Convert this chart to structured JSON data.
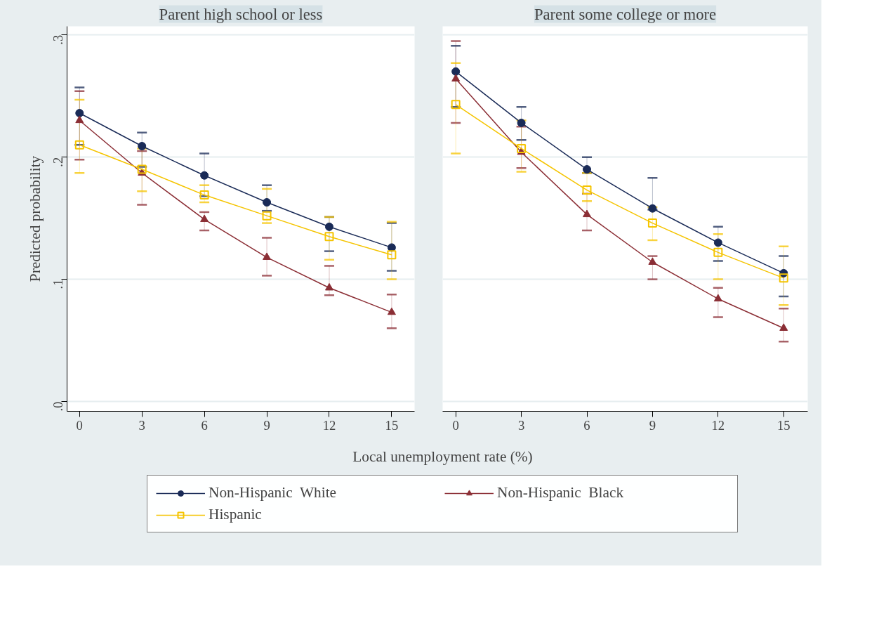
{
  "chart_data": [
    {
      "type": "line",
      "title": "Parent high school or less",
      "xlabel": "Local unemployment rate (%)",
      "ylabel": "Predicted probability",
      "x": [
        0,
        3,
        6,
        9,
        12,
        15
      ],
      "xlim": [
        -0.6,
        16.1
      ],
      "xticks": [
        0,
        3,
        6,
        9,
        12,
        15
      ],
      "ylim": [
        -0.008,
        0.307
      ],
      "yticks": [
        {
          "value": 0,
          "label": ".0"
        },
        {
          "value": 0.1,
          "label": ".1"
        },
        {
          "value": 0.2,
          "label": ".2"
        },
        {
          "value": 0.3,
          "label": ".3"
        }
      ],
      "grid": "y",
      "legend": "bottom",
      "series": [
        {
          "name": "Non-Hispanic  White",
          "color": "#1a2b57",
          "marker": "circle",
          "values": [
            0.236,
            0.209,
            0.185,
            0.163,
            0.143,
            0.126
          ],
          "errors": [
            [
              0.21,
              0.257
            ],
            [
              0.192,
              0.22
            ],
            [
              0.168,
              0.203
            ],
            [
              0.156,
              0.177
            ],
            [
              0.123,
              0.151
            ],
            [
              0.107,
              0.146
            ]
          ]
        },
        {
          "name": "Non-Hispanic  Black",
          "color": "#8b2e35",
          "marker": "triangle",
          "values": [
            0.23,
            0.187,
            0.149,
            0.118,
            0.093,
            0.073
          ],
          "errors": [
            [
              0.198,
              0.254
            ],
            [
              0.161,
              0.205
            ],
            [
              0.14,
              0.155
            ],
            [
              0.103,
              0.134
            ],
            [
              0.087,
              0.111
            ],
            [
              0.06,
              0.0875
            ]
          ]
        },
        {
          "name": "Hispanic",
          "color": "#f5c400",
          "marker": "square",
          "values": [
            0.21,
            0.19,
            0.169,
            0.152,
            0.135,
            0.12
          ],
          "errors": [
            [
              0.187,
              0.247
            ],
            [
              0.172,
              0.207
            ],
            [
              0.163,
              0.177
            ],
            [
              0.146,
              0.174
            ],
            [
              0.116,
              0.151
            ],
            [
              0.1,
              0.147
            ]
          ]
        }
      ]
    },
    {
      "type": "line",
      "title": "Parent some college or more",
      "x": [
        0,
        3,
        6,
        9,
        12,
        15
      ],
      "xlim": [
        -0.6,
        16.1
      ],
      "xticks": [
        0,
        3,
        6,
        9,
        12,
        15
      ],
      "ylim": [
        -0.008,
        0.307
      ],
      "yticks": [
        0,
        0.1,
        0.2,
        0.3
      ],
      "grid": "y",
      "tick_labels": "x",
      "series": [
        {
          "color": "#1a2b57",
          "marker": "circle",
          "values": [
            0.27,
            0.228,
            0.19,
            0.158,
            0.13,
            0.105
          ],
          "errors": [
            [
              0.241,
              0.291
            ],
            [
              0.214,
              0.241
            ],
            [
              0.187,
              0.2
            ],
            [
              0.157,
              0.183
            ],
            [
              0.115,
              0.143
            ],
            [
              0.086,
              0.119
            ]
          ]
        },
        {
          "color": "#8b2e35",
          "marker": "triangle",
          "values": [
            0.264,
            0.204,
            0.153,
            0.114,
            0.084,
            0.06
          ],
          "errors": [
            [
              0.228,
              0.295
            ],
            [
              0.191,
              0.225
            ],
            [
              0.14,
              0.17
            ],
            [
              0.1,
              0.119
            ],
            [
              0.069,
              0.093
            ],
            [
              0.049,
              0.076
            ]
          ]
        },
        {
          "color": "#f5c400",
          "marker": "square",
          "values": [
            0.243,
            0.207,
            0.173,
            0.146,
            0.122,
            0.101
          ],
          "errors": [
            [
              0.203,
              0.277
            ],
            [
              0.188,
              0.23
            ],
            [
              0.164,
              0.187
            ],
            [
              0.132,
              0.159
            ],
            [
              0.1,
              0.137
            ],
            [
              0.079,
              0.127
            ]
          ]
        }
      ]
    }
  ]
}
